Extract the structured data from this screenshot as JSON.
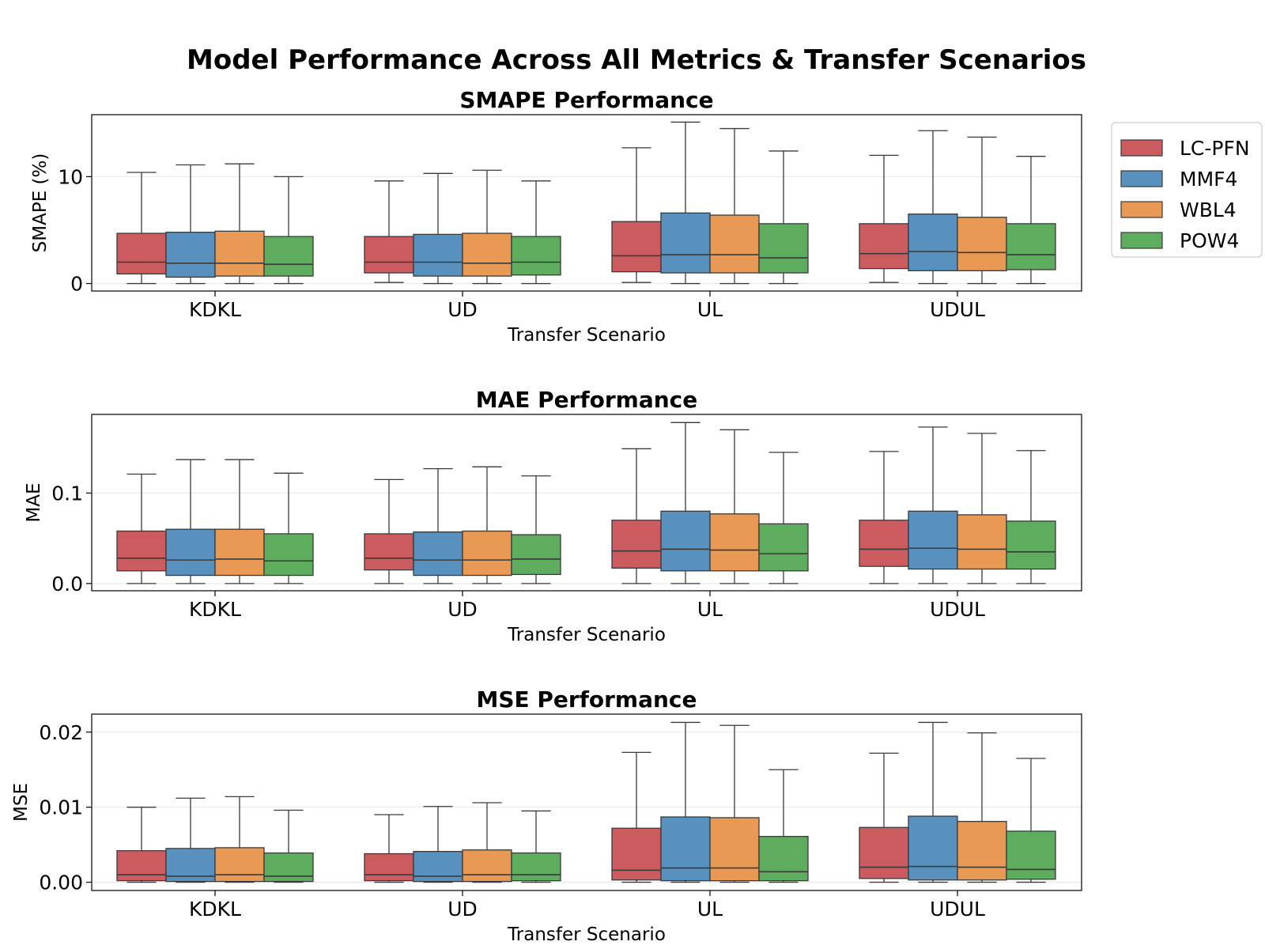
{
  "figure": {
    "title": "Model Performance Across All Metrics & Transfer Scenarios"
  },
  "legend": {
    "placement": "outside-right",
    "items": [
      {
        "name": "LC-PFN",
        "color": "#cb5b5f"
      },
      {
        "name": "MMF4",
        "color": "#5891bd"
      },
      {
        "name": "WBL4",
        "color": "#e89953"
      },
      {
        "name": "POW4",
        "color": "#5ead5f"
      }
    ]
  },
  "chart_data": [
    {
      "type": "box",
      "title": "SMAPE Performance",
      "xlabel": "Transfer Scenario",
      "ylabel": "SMAPE (%)",
      "ylim": [
        -0.7,
        15.8
      ],
      "yticks": [
        0,
        10
      ],
      "ytick_labels": [
        "0",
        "10"
      ],
      "grid": true,
      "categories": [
        "KDKL",
        "UD",
        "UL",
        "UDUL"
      ],
      "series": [
        {
          "name": "LC-PFN",
          "boxes": [
            {
              "min": 0.0,
              "q1": 0.9,
              "median": 2.0,
              "q3": 4.7,
              "max": 10.4
            },
            {
              "min": 0.1,
              "q1": 1.0,
              "median": 2.0,
              "q3": 4.4,
              "max": 9.6
            },
            {
              "min": 0.1,
              "q1": 1.1,
              "median": 2.6,
              "q3": 5.8,
              "max": 12.7
            },
            {
              "min": 0.1,
              "q1": 1.4,
              "median": 2.8,
              "q3": 5.6,
              "max": 12.0
            }
          ]
        },
        {
          "name": "MMF4",
          "boxes": [
            {
              "min": 0.0,
              "q1": 0.6,
              "median": 1.9,
              "q3": 4.8,
              "max": 11.1
            },
            {
              "min": 0.0,
              "q1": 0.7,
              "median": 2.0,
              "q3": 4.6,
              "max": 10.3
            },
            {
              "min": 0.0,
              "q1": 1.0,
              "median": 2.7,
              "q3": 6.6,
              "max": 15.1
            },
            {
              "min": 0.0,
              "q1": 1.2,
              "median": 3.0,
              "q3": 6.5,
              "max": 14.3
            }
          ]
        },
        {
          "name": "WBL4",
          "boxes": [
            {
              "min": 0.0,
              "q1": 0.7,
              "median": 1.9,
              "q3": 4.9,
              "max": 11.2
            },
            {
              "min": 0.0,
              "q1": 0.7,
              "median": 1.9,
              "q3": 4.7,
              "max": 10.6
            },
            {
              "min": 0.0,
              "q1": 1.0,
              "median": 2.7,
              "q3": 6.4,
              "max": 14.5
            },
            {
              "min": 0.0,
              "q1": 1.2,
              "median": 2.9,
              "q3": 6.2,
              "max": 13.7
            }
          ]
        },
        {
          "name": "POW4",
          "boxes": [
            {
              "min": 0.0,
              "q1": 0.7,
              "median": 1.8,
              "q3": 4.4,
              "max": 10.0
            },
            {
              "min": 0.0,
              "q1": 0.8,
              "median": 2.0,
              "q3": 4.4,
              "max": 9.6
            },
            {
              "min": 0.0,
              "q1": 1.0,
              "median": 2.4,
              "q3": 5.6,
              "max": 12.4
            },
            {
              "min": 0.0,
              "q1": 1.3,
              "median": 2.7,
              "q3": 5.6,
              "max": 11.9
            }
          ]
        }
      ]
    },
    {
      "type": "box",
      "title": "MAE Performance",
      "xlabel": "Transfer Scenario",
      "ylabel": "MAE",
      "ylim": [
        -0.008,
        0.187
      ],
      "yticks": [
        0.0,
        0.1
      ],
      "ytick_labels": [
        "0.0",
        "0.1"
      ],
      "grid": true,
      "categories": [
        "KDKL",
        "UD",
        "UL",
        "UDUL"
      ],
      "series": [
        {
          "name": "LC-PFN",
          "boxes": [
            {
              "min": 0.0,
              "q1": 0.014,
              "median": 0.028,
              "q3": 0.058,
              "max": 0.121
            },
            {
              "min": 0.0,
              "q1": 0.015,
              "median": 0.028,
              "q3": 0.055,
              "max": 0.115
            },
            {
              "min": 0.0,
              "q1": 0.017,
              "median": 0.036,
              "q3": 0.07,
              "max": 0.149
            },
            {
              "min": 0.0,
              "q1": 0.019,
              "median": 0.038,
              "q3": 0.07,
              "max": 0.146
            }
          ]
        },
        {
          "name": "MMF4",
          "boxes": [
            {
              "min": 0.0,
              "q1": 0.009,
              "median": 0.026,
              "q3": 0.06,
              "max": 0.137
            },
            {
              "min": 0.0,
              "q1": 0.009,
              "median": 0.026,
              "q3": 0.057,
              "max": 0.127
            },
            {
              "min": 0.0,
              "q1": 0.014,
              "median": 0.038,
              "q3": 0.08,
              "max": 0.178
            },
            {
              "min": 0.0,
              "q1": 0.016,
              "median": 0.039,
              "q3": 0.08,
              "max": 0.173
            }
          ]
        },
        {
          "name": "WBL4",
          "boxes": [
            {
              "min": 0.0,
              "q1": 0.009,
              "median": 0.027,
              "q3": 0.06,
              "max": 0.137
            },
            {
              "min": 0.0,
              "q1": 0.009,
              "median": 0.026,
              "q3": 0.058,
              "max": 0.129
            },
            {
              "min": 0.0,
              "q1": 0.014,
              "median": 0.037,
              "q3": 0.077,
              "max": 0.17
            },
            {
              "min": 0.0,
              "q1": 0.016,
              "median": 0.038,
              "q3": 0.076,
              "max": 0.166
            }
          ]
        },
        {
          "name": "POW4",
          "boxes": [
            {
              "min": 0.0,
              "q1": 0.009,
              "median": 0.025,
              "q3": 0.055,
              "max": 0.122
            },
            {
              "min": 0.0,
              "q1": 0.01,
              "median": 0.027,
              "q3": 0.054,
              "max": 0.119
            },
            {
              "min": 0.0,
              "q1": 0.014,
              "median": 0.033,
              "q3": 0.066,
              "max": 0.145
            },
            {
              "min": 0.0,
              "q1": 0.016,
              "median": 0.035,
              "q3": 0.069,
              "max": 0.147
            }
          ]
        }
      ]
    },
    {
      "type": "box",
      "title": "MSE Performance",
      "xlabel": "Transfer Scenario",
      "ylabel": "MSE",
      "ylim": [
        -0.0011,
        0.0224
      ],
      "yticks": [
        0.0,
        0.01,
        0.02
      ],
      "ytick_labels": [
        "0.00",
        "0.01",
        "0.02"
      ],
      "grid": true,
      "categories": [
        "KDKL",
        "UD",
        "UL",
        "UDUL"
      ],
      "series": [
        {
          "name": "LC-PFN",
          "boxes": [
            {
              "min": 0.0,
              "q1": 0.0002,
              "median": 0.001,
              "q3": 0.0042,
              "max": 0.01
            },
            {
              "min": 0.0,
              "q1": 0.0002,
              "median": 0.001,
              "q3": 0.0038,
              "max": 0.009
            },
            {
              "min": 0.0,
              "q1": 0.0003,
              "median": 0.0016,
              "q3": 0.0072,
              "max": 0.0173
            },
            {
              "min": 0.0,
              "q1": 0.0005,
              "median": 0.002,
              "q3": 0.0073,
              "max": 0.0172
            }
          ]
        },
        {
          "name": "MMF4",
          "boxes": [
            {
              "min": 0.0,
              "q1": 0.0001,
              "median": 0.0008,
              "q3": 0.0045,
              "max": 0.0112
            },
            {
              "min": 0.0,
              "q1": 0.0001,
              "median": 0.0008,
              "q3": 0.0041,
              "max": 0.0101
            },
            {
              "min": 0.0,
              "q1": 0.0002,
              "median": 0.0019,
              "q3": 0.0087,
              "max": 0.0213
            },
            {
              "min": 0.0,
              "q1": 0.0003,
              "median": 0.0021,
              "q3": 0.0088,
              "max": 0.0213
            }
          ]
        },
        {
          "name": "WBL4",
          "boxes": [
            {
              "min": 0.0,
              "q1": 0.0001,
              "median": 0.001,
              "q3": 0.0046,
              "max": 0.0114
            },
            {
              "min": 0.0,
              "q1": 0.0001,
              "median": 0.001,
              "q3": 0.0043,
              "max": 0.0106
            },
            {
              "min": 0.0,
              "q1": 0.0002,
              "median": 0.0019,
              "q3": 0.0086,
              "max": 0.0209
            },
            {
              "min": 0.0,
              "q1": 0.0003,
              "median": 0.002,
              "q3": 0.0081,
              "max": 0.0199
            }
          ]
        },
        {
          "name": "POW4",
          "boxes": [
            {
              "min": 0.0,
              "q1": 0.0001,
              "median": 0.0008,
              "q3": 0.0039,
              "max": 0.0096
            },
            {
              "min": 0.0,
              "q1": 0.0002,
              "median": 0.001,
              "q3": 0.0039,
              "max": 0.0095
            },
            {
              "min": 0.0,
              "q1": 0.0002,
              "median": 0.0014,
              "q3": 0.0061,
              "max": 0.015
            },
            {
              "min": 0.0,
              "q1": 0.0004,
              "median": 0.0017,
              "q3": 0.0068,
              "max": 0.0165
            }
          ]
        }
      ]
    }
  ]
}
